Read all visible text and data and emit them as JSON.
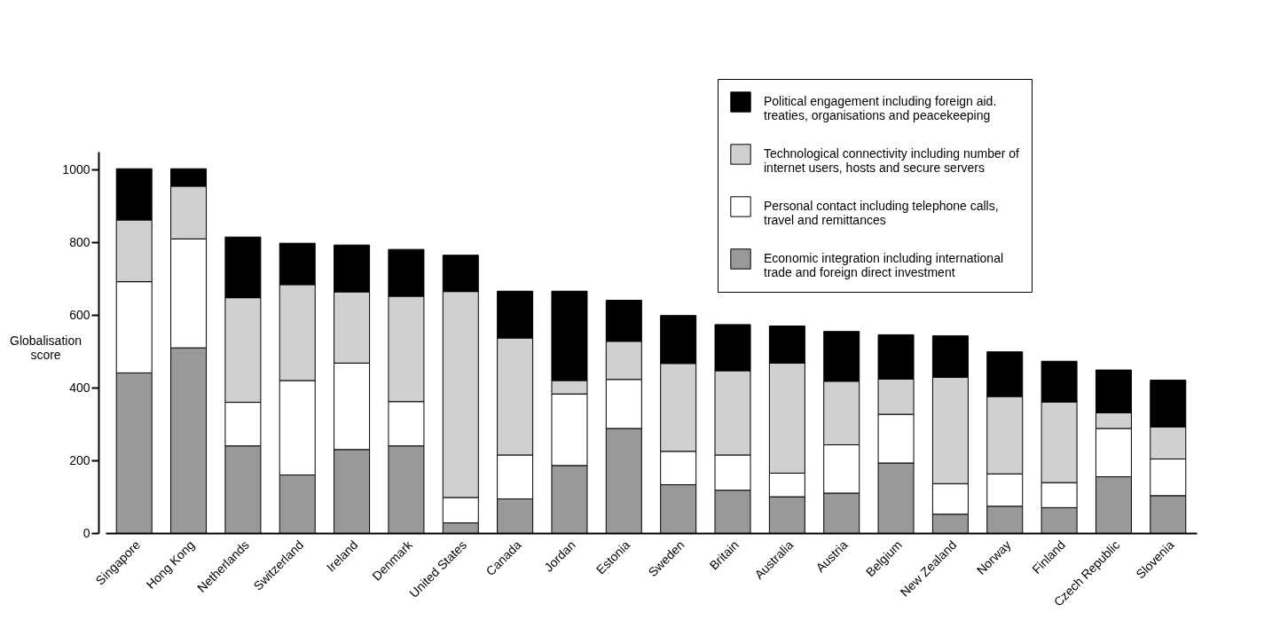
{
  "chart_data": {
    "type": "bar",
    "stacked": true,
    "ylabel": "Globalisation score",
    "categories": [
      "Singapore",
      "Hong Kong",
      "Netherlands",
      "Switzerland",
      "Ireland",
      "Denmark",
      "United States",
      "Canada",
      "Jordan",
      "Estonia",
      "Sweden",
      "Britain",
      "Australia",
      "Austria",
      "Belgium",
      "New Zealand",
      "Norway",
      "Finland",
      "Czech Republic",
      "Slovenia"
    ],
    "series": [
      {
        "name": "Economic integration including international trade and foreign direct investment",
        "color": "#999999",
        "values": [
          441,
          510,
          240,
          160,
          230,
          240,
          28,
          94,
          186,
          288,
          133,
          118,
          100,
          110,
          193,
          52,
          74,
          70,
          155,
          103
        ]
      },
      {
        "name": "Personal contact including telephone calls, travel and remittances",
        "color": "#ffffff",
        "values": [
          251,
          300,
          120,
          260,
          238,
          122,
          70,
          121,
          197,
          135,
          92,
          97,
          65,
          133,
          134,
          84,
          89,
          69,
          133,
          101
        ]
      },
      {
        "name": "Technological connectivity including number of internet users, hosts and secure servers",
        "color": "#d0d0d0",
        "values": [
          170,
          145,
          288,
          264,
          196,
          290,
          567,
          322,
          37,
          105,
          242,
          232,
          303,
          175,
          97,
          293,
          213,
          222,
          43,
          88
        ]
      },
      {
        "name": "Political engagement including foreign aid. treaties, organisations and peacekeeping",
        "color": "#000000",
        "values": [
          141,
          48,
          167,
          114,
          129,
          129,
          100,
          129,
          246,
          113,
          132,
          127,
          102,
          137,
          122,
          114,
          123,
          112,
          118,
          129
        ]
      }
    ],
    "ylim": [
      0,
      1050
    ],
    "yticks": [
      0,
      200,
      400,
      600,
      800,
      1000
    ],
    "grid": false,
    "legend": "top right"
  }
}
